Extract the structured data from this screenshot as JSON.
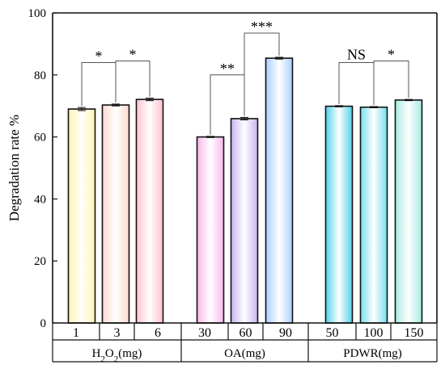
{
  "chart_data": {
    "type": "bar",
    "ylabel": "Degradation rate %",
    "ylim": [
      0,
      100
    ],
    "yticks": [
      "0",
      "20",
      "40",
      "60",
      "80",
      "100"
    ],
    "grid": false,
    "groups": [
      {
        "name_main": "H",
        "name_sub1": "2",
        "name_mid": "O",
        "name_sub2": "2",
        "name_tail": "(mg)",
        "categories": [
          "1",
          "3",
          "6"
        ],
        "values": [
          69.0,
          70.3,
          72.1
        ],
        "errors": [
          0.5,
          0.3,
          0.4
        ],
        "colors": [
          "#fff3b0",
          "#ffd9cf",
          "#ffc2cc"
        ],
        "significance": [
          {
            "from": 0,
            "to": 1,
            "label": "*",
            "height": 84
          },
          {
            "from": 1,
            "to": 2,
            "label": "*",
            "height": 84.5
          }
        ]
      },
      {
        "name_main": "OA(mg)",
        "categories": [
          "30",
          "60",
          "90"
        ],
        "values": [
          60.0,
          65.9,
          85.4
        ],
        "errors": [
          0.2,
          0.4,
          0.3
        ],
        "colors": [
          "#f7b8ec",
          "#c7b3f2",
          "#aacfff"
        ],
        "significance": [
          {
            "from": 0,
            "to": 1,
            "label": "**",
            "height": 80
          },
          {
            "from": 1,
            "to": 2,
            "label": "***",
            "height": 93.5
          }
        ]
      },
      {
        "name_main": "PDWR(mg)",
        "categories": [
          "50",
          "100",
          "150"
        ],
        "values": [
          69.9,
          69.6,
          71.9
        ],
        "errors": [
          0.2,
          0.2,
          0.2
        ],
        "colors": [
          "#52d3ea",
          "#75dfee",
          "#a6ece4"
        ],
        "significance": [
          {
            "from": 0,
            "to": 1,
            "label": "NS",
            "height": 84
          },
          {
            "from": 1,
            "to": 2,
            "label": "*",
            "height": 84.5
          }
        ]
      }
    ]
  }
}
